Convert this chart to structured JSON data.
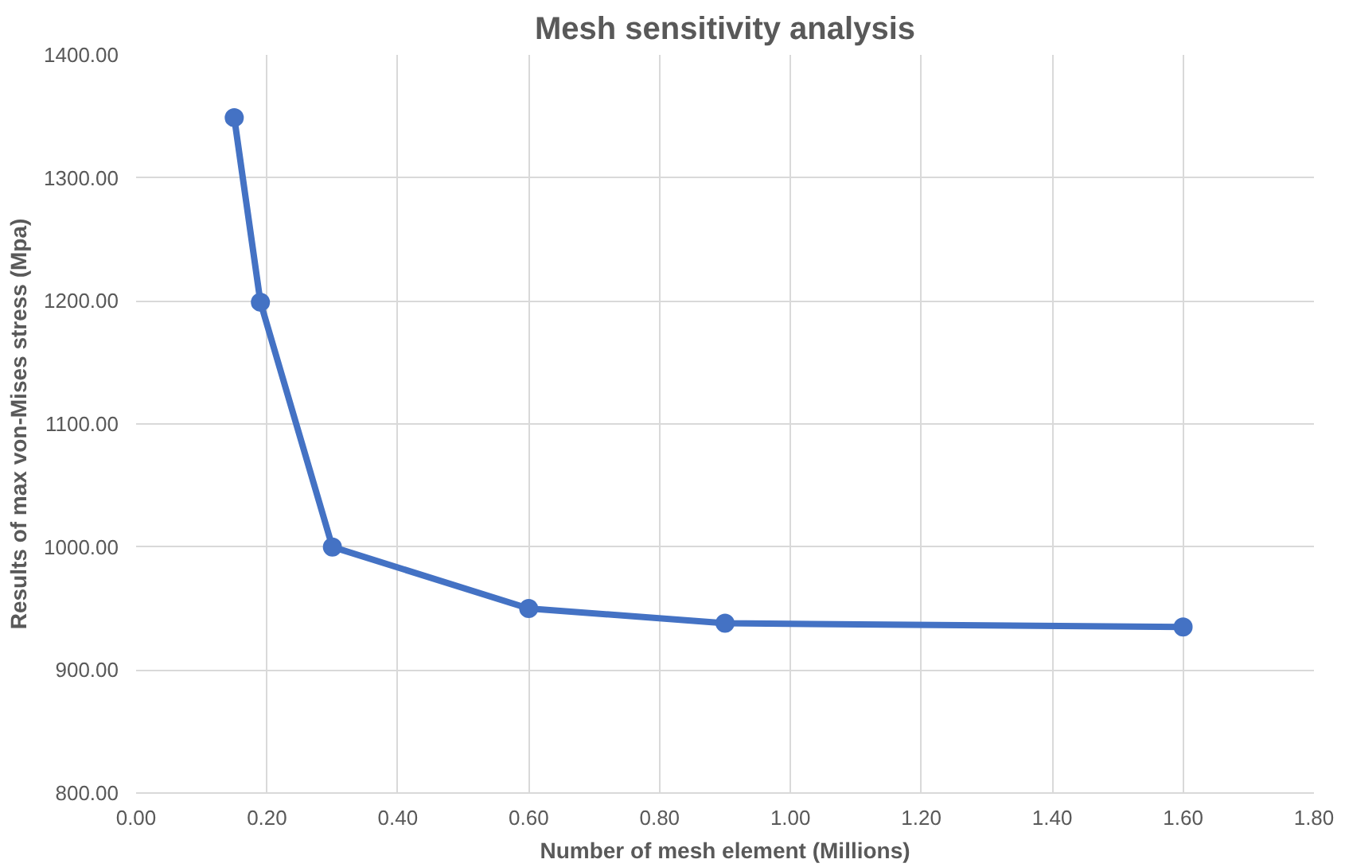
{
  "chart_data": {
    "type": "line",
    "title": "Mesh sensitivity analysis",
    "xlabel": "Number of mesh element (Millions)",
    "ylabel": "Results of max von-Mises stress (Mpa)",
    "x": [
      0.15,
      0.19,
      0.3,
      0.6,
      0.9,
      1.6
    ],
    "series": [
      {
        "color": "#4472c4",
        "values": [
          1349,
          1199,
          1000,
          950,
          938,
          935
        ]
      }
    ],
    "xlim": [
      0,
      1.8
    ],
    "xticks": [
      {
        "value": 0,
        "label": "0.00"
      },
      {
        "value": 0.2,
        "label": "0.20"
      },
      {
        "value": 0.4,
        "label": "0.40"
      },
      {
        "value": 0.6,
        "label": "0.60"
      },
      {
        "value": 0.8,
        "label": "0.80"
      },
      {
        "value": 1.0,
        "label": "1.00"
      },
      {
        "value": 1.2,
        "label": "1.20"
      },
      {
        "value": 1.4,
        "label": "1.40"
      },
      {
        "value": 1.6,
        "label": "1.60"
      },
      {
        "value": 1.8,
        "label": "1.80"
      }
    ],
    "ylim": [
      800,
      1400
    ],
    "yticks": [
      {
        "value": 800,
        "label": "800.00"
      },
      {
        "value": 900,
        "label": "900.00"
      },
      {
        "value": 1000,
        "label": "1000.00"
      },
      {
        "value": 1100,
        "label": "1100.00"
      },
      {
        "value": 1200,
        "label": "1200.00"
      },
      {
        "value": 1300,
        "label": "1300.00"
      },
      {
        "value": 1400,
        "label": "1400.00"
      }
    ],
    "grid": true,
    "marker": "circle",
    "line_style": "solid"
  }
}
